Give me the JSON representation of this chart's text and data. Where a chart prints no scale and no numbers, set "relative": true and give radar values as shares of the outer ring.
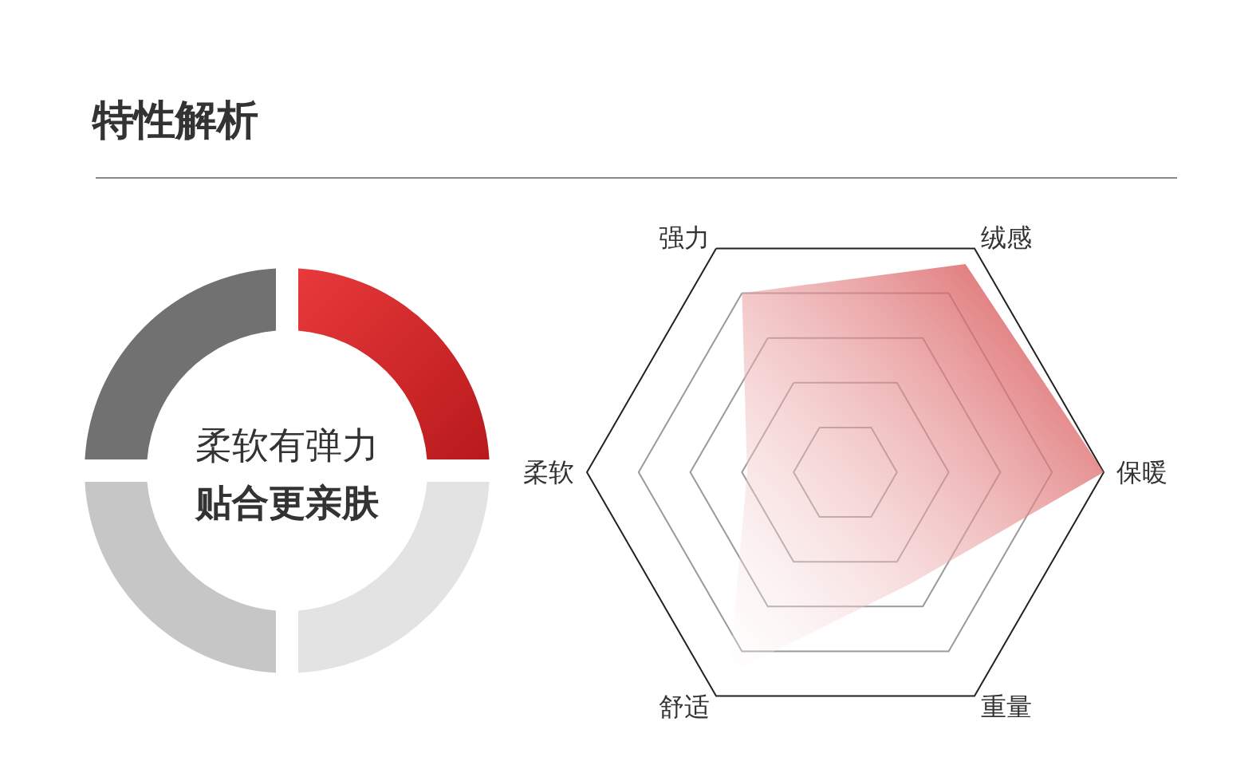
{
  "chart_data": {
    "type": "radar",
    "title": "特性解析",
    "annotations": [
      "柔软有弹力",
      "贴合更亲肤"
    ],
    "categories": [
      "强力",
      "绒感",
      "保暖",
      "重量",
      "舒适",
      "柔软"
    ],
    "relative": true,
    "grid": true,
    "series": [
      {
        "color": "#d23a3c",
        "values": [
          0.8,
          0.93,
          1,
          0.5,
          0.9,
          0.38
        ]
      }
    ]
  }
}
